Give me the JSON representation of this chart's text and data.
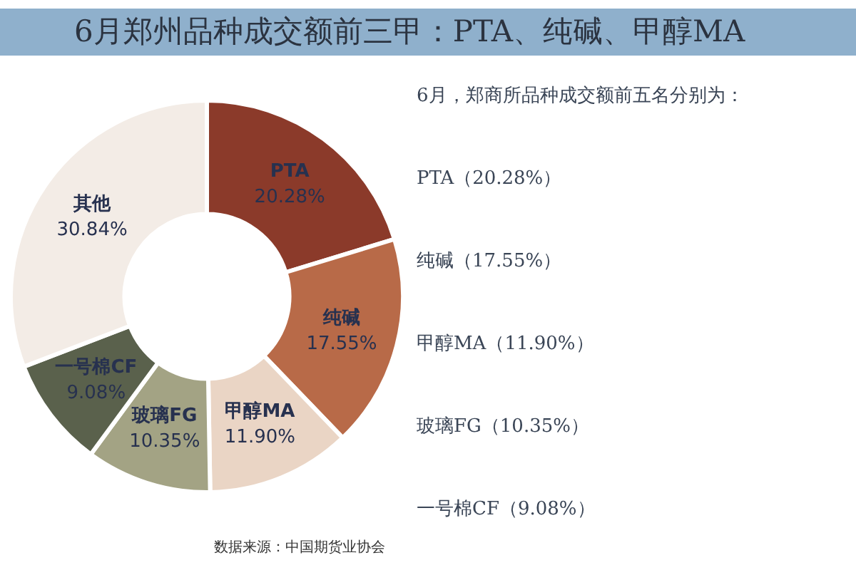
{
  "chart_data": {
    "type": "donut",
    "title": "6月郑州品种成交额前三甲：PTA、纯碱、甲醇MA",
    "categories": [
      "PTA",
      "纯碱",
      "甲醇MA",
      "玻璃FG",
      "一号棉CF",
      "其他"
    ],
    "values": [
      20.28,
      17.55,
      11.9,
      10.35,
      9.08,
      30.84
    ],
    "value_labels": [
      "20.28%",
      "17.55%",
      "11.90%",
      "10.35%",
      "9.08%",
      "30.84%"
    ],
    "colors": [
      "#8b3a2a",
      "#b86a48",
      "#ead5c5",
      "#a3a384",
      "#5a614c",
      "#f3ece6"
    ],
    "legend": false,
    "annotations": [
      "6月，郑商所品种成交额前五名分别为：",
      "PTA（20.28%）",
      "纯碱（17.55%）",
      "甲醇MA（11.90%）",
      "玻璃FG（10.35%）",
      "一号棉CF（9.08%）",
      "数据来源：中国期货业协会"
    ]
  }
}
